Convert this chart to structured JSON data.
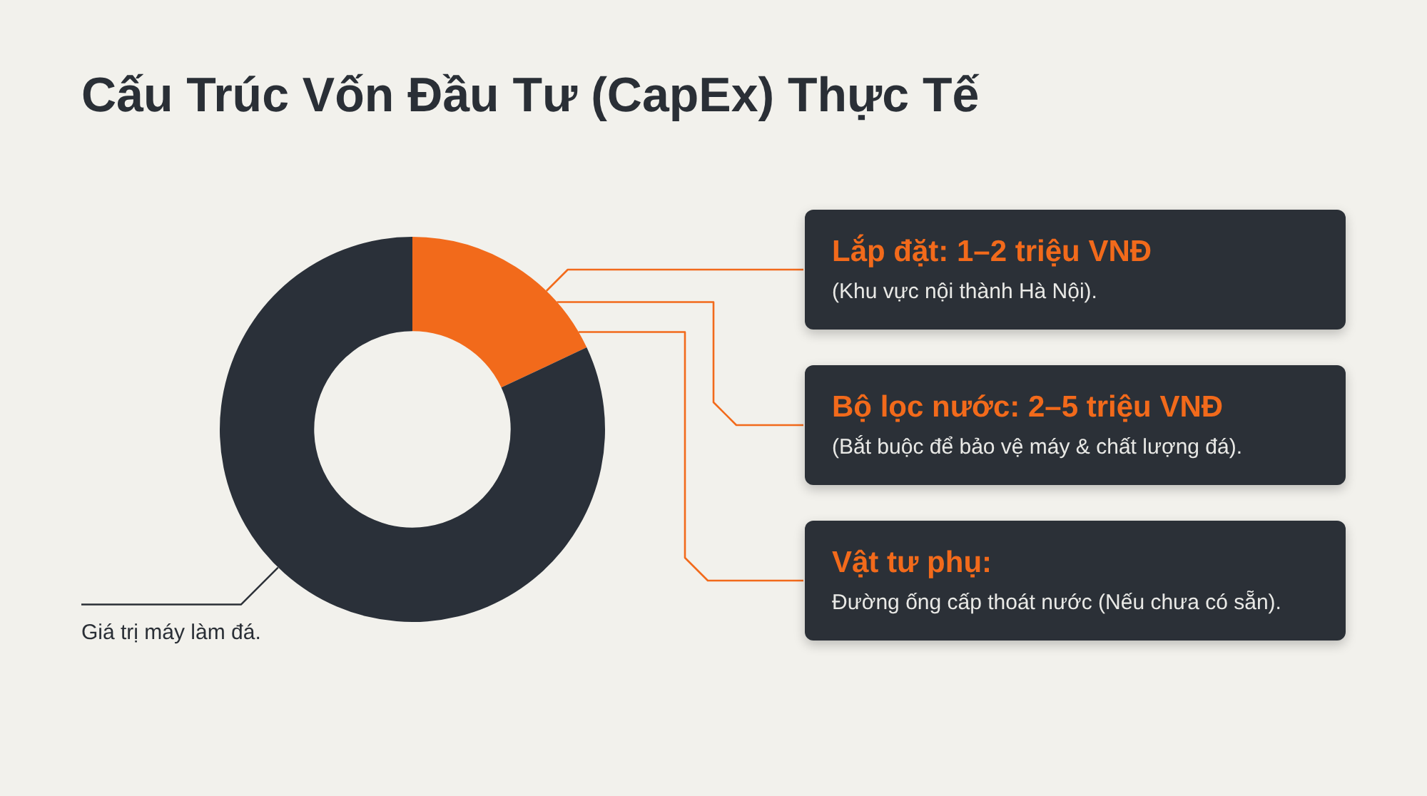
{
  "chart_data": {
    "type": "donut",
    "title": "Cấu Trúc Vốn Đầu Tư (CapEx) Thực Tế",
    "categories": [
      null,
      "Giá trị máy làm đá."
    ],
    "values": [
      18,
      82
    ],
    "colors": [
      "#f26a1b",
      "#2a3039"
    ],
    "annotations": [
      "Lắp đặt: 1–2 triệu VNĐ",
      "(Khu vực nội thành Hà Nội).",
      "Bộ lọc nước: 2–5 triệu VNĐ",
      "(Bắt buộc để bảo vệ máy & chất lượng đá).",
      "Vật tư phụ:",
      "Đường ống cấp thoát nước (Nếu chưa có sẵn)."
    ]
  }
}
